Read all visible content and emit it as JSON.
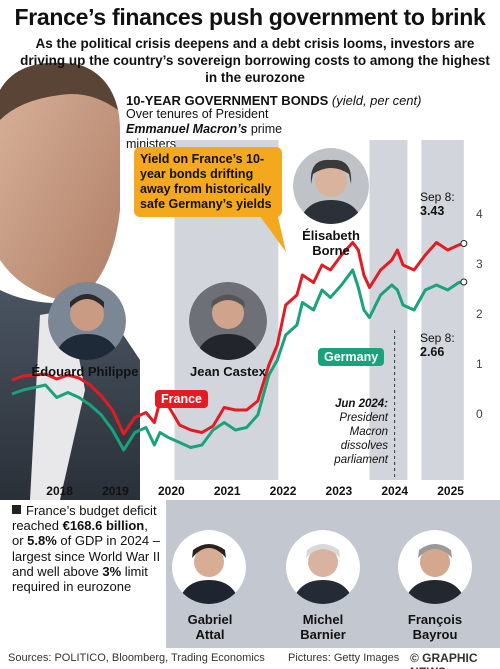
{
  "headline": "France’s finances push government to brink",
  "subhead": "As the political crisis deepens and a debt crisis looms, investors are driving up the country’s sovereign borrowing costs to among the highest in the eurozone",
  "chart_data": {
    "type": "line",
    "title": "10-YEAR GOVERNMENT BONDS",
    "unit": "(yield, per cent)",
    "subtitle_pre": "Over tenures of President ",
    "subtitle_name": "Emmanuel Macron’s",
    "subtitle_post": " prime ministers",
    "x_ticks": [
      "2018",
      "2019",
      "2020",
      "2021",
      "2022",
      "2023",
      "2024",
      "2025"
    ],
    "y_ticks": [
      "0",
      "1",
      "2",
      "3",
      "4"
    ],
    "ylim": [
      -0.8,
      4.4
    ],
    "xlim": [
      2017.6,
      2025.8
    ],
    "series": [
      {
        "name": "France",
        "color": "#e31b23",
        "x": [
          2017.6,
          2017.8,
          2018.0,
          2018.2,
          2018.4,
          2018.6,
          2018.8,
          2019.0,
          2019.2,
          2019.4,
          2019.6,
          2019.8,
          2020.0,
          2020.15,
          2020.25,
          2020.4,
          2020.6,
          2020.8,
          2021.0,
          2021.2,
          2021.4,
          2021.6,
          2021.8,
          2022.0,
          2022.2,
          2022.35,
          2022.5,
          2022.7,
          2022.8,
          2023.0,
          2023.15,
          2023.3,
          2023.5,
          2023.7,
          2023.8,
          2023.9,
          2024.0,
          2024.2,
          2024.4,
          2024.5,
          2024.6,
          2024.8,
          2025.0,
          2025.2,
          2025.4,
          2025.6,
          2025.69
        ],
        "y": [
          0.7,
          0.78,
          0.8,
          0.82,
          0.72,
          0.8,
          0.74,
          0.6,
          0.38,
          0.1,
          -0.38,
          -0.05,
          0.05,
          -0.15,
          0.28,
          0.18,
          -0.2,
          -0.3,
          -0.35,
          -0.22,
          0.15,
          0.1,
          0.1,
          0.28,
          1.0,
          1.4,
          2.2,
          2.4,
          2.8,
          2.65,
          3.0,
          2.9,
          3.2,
          3.45,
          3.3,
          2.8,
          2.55,
          2.9,
          3.1,
          3.3,
          3.0,
          2.9,
          3.2,
          3.45,
          3.3,
          3.4,
          3.43
        ]
      },
      {
        "name": "Germany",
        "color": "#1aa37a",
        "x": [
          2017.6,
          2017.8,
          2018.0,
          2018.2,
          2018.4,
          2018.6,
          2018.8,
          2019.0,
          2019.2,
          2019.4,
          2019.6,
          2019.8,
          2020.0,
          2020.15,
          2020.25,
          2020.4,
          2020.6,
          2020.8,
          2021.0,
          2021.2,
          2021.4,
          2021.6,
          2021.8,
          2022.0,
          2022.2,
          2022.35,
          2022.5,
          2022.7,
          2022.8,
          2023.0,
          2023.15,
          2023.3,
          2023.5,
          2023.7,
          2023.8,
          2023.9,
          2024.0,
          2024.2,
          2024.4,
          2024.5,
          2024.6,
          2024.8,
          2025.0,
          2025.2,
          2025.4,
          2025.6,
          2025.69
        ],
        "y": [
          0.42,
          0.5,
          0.55,
          0.6,
          0.35,
          0.45,
          0.35,
          0.2,
          0.0,
          -0.3,
          -0.7,
          -0.35,
          -0.25,
          -0.6,
          -0.35,
          -0.45,
          -0.55,
          -0.65,
          -0.6,
          -0.3,
          -0.15,
          -0.3,
          -0.25,
          0.0,
          0.8,
          1.1,
          1.6,
          1.8,
          2.25,
          2.1,
          2.5,
          2.35,
          2.6,
          2.9,
          2.55,
          2.1,
          1.95,
          2.4,
          2.6,
          2.5,
          2.2,
          2.1,
          2.5,
          2.6,
          2.5,
          2.65,
          2.66
        ]
      }
    ],
    "tenure_bands": [
      [
        2020.51,
        2022.37
      ],
      [
        2024.0,
        2024.68
      ],
      [
        2024.93,
        2025.69
      ]
    ],
    "label_france": "France",
    "label_germany": "Germany",
    "end_france_date": "Sep 8:",
    "end_france_value": "3.43",
    "end_germany_date": "Sep 8:",
    "end_germany_value": "2.66",
    "callout": "Yield on France’s 10-year bonds drifting away from historically safe Germany’s yields",
    "jun_title": "Jun 2024:",
    "jun_text": "President Macron dissolves parliament"
  },
  "pms": {
    "philippe": "Édouard Philippe",
    "castex": "Jean Castex",
    "borne_first": "Élisabeth",
    "borne_last": "Borne",
    "attal_first": "Gabriel",
    "attal_last": "Attal",
    "barnier_first": "Michel",
    "barnier_last": "Barnier",
    "bayrou_first": "François",
    "bayrou_last": "Bayrou"
  },
  "sidebox": {
    "p1": "France’s budget deficit reached ",
    "b1": "€168.6 billion",
    "p2": ", or ",
    "b2": "5.8%",
    "p3": " of GDP in 2024 – largest since World War II and well above ",
    "b3": "3%",
    "p4": " limit required in eurozone"
  },
  "footer": {
    "sources": "Sources: POLITICO, Bloomberg, Trading Economics",
    "pictures": "Pictures: Getty Images",
    "brand": "© GRAPHIC NEWS"
  },
  "colors": {
    "france": "#e31b23",
    "germany": "#1aa37a",
    "callout": "#f4a81d",
    "band": "#c3c8d0"
  }
}
